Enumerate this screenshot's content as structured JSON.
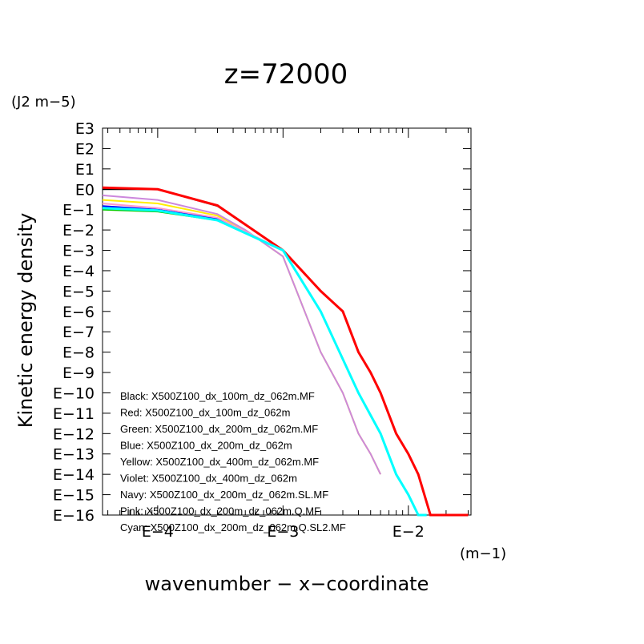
{
  "chart_data": {
    "type": "line",
    "title": "z=72000",
    "xlabel": "wavenumber − x−coordinate",
    "ylabel": "Kinetic energy density",
    "x_unit": "(m−1)",
    "y_unit": "(J2 m−5)",
    "x_scale": "log",
    "y_scale": "log",
    "xlim": [
      3.63e-05,
      0.0316
    ],
    "ylim": [
      1e-16,
      1000
    ],
    "x_tick_labels": [
      "E−4",
      "E−3",
      "E−2"
    ],
    "y_tick_labels": [
      "E3",
      "E2",
      "E1",
      "E0",
      "E−1",
      "E−2",
      "E−3",
      "E−4",
      "E−5",
      "E−6",
      "E−7",
      "E−8",
      "E−9",
      "E−10",
      "E−11",
      "E−12",
      "E−13",
      "E−14",
      "E−15",
      "E−16"
    ],
    "legend_position": "bottom-left",
    "series": [
      {
        "name": "Black: X500Z100_dx_100m_dz_062m.MF",
        "color": "#000000",
        "x": [
          3.63e-05,
          0.0001,
          0.0003,
          0.001,
          0.002,
          0.003,
          0.004,
          0.005,
          0.006,
          0.008,
          0.01,
          0.012,
          0.015,
          0.02,
          0.025,
          0.03
        ],
        "y": [
          1,
          1,
          0.15,
          0.001,
          1e-05,
          1e-06,
          1e-08,
          1e-09,
          1e-10,
          1e-12,
          1e-13,
          1e-14,
          1e-16,
          1e-16,
          1e-16,
          1e-16
        ]
      },
      {
        "name": "Red: X500Z100_dx_100m_dz_062m",
        "color": "#ff0000",
        "x": [
          3.63e-05,
          0.0001,
          0.0003,
          0.001,
          0.002,
          0.003,
          0.004,
          0.005,
          0.006,
          0.008,
          0.01,
          0.012,
          0.015,
          0.02,
          0.025,
          0.03
        ],
        "y": [
          1.2,
          1,
          0.16,
          0.001,
          1e-05,
          1e-06,
          1e-08,
          1e-09,
          1e-10,
          1e-12,
          1e-13,
          1e-14,
          1e-16,
          1e-16,
          1e-16,
          1e-16
        ]
      },
      {
        "name": "Green: X500Z100_dx_200m_dz_062m.MF",
        "color": "#00cc00",
        "x": [
          3.63e-05,
          0.0001,
          0.0003,
          0.001,
          0.002,
          0.004,
          0.006,
          0.008,
          0.01,
          0.012,
          0.014
        ],
        "y": [
          0.1,
          0.08,
          0.03,
          0.001,
          1e-06,
          1e-10,
          1e-12,
          1e-14,
          1e-15,
          1e-16,
          1e-16
        ]
      },
      {
        "name": "Blue: X500Z100_dx_200m_dz_062m",
        "color": "#0000ff",
        "x": [
          3.63e-05,
          0.0001,
          0.0003,
          0.001,
          0.002,
          0.004,
          0.006,
          0.008,
          0.01,
          0.012,
          0.014
        ],
        "y": [
          0.15,
          0.1,
          0.035,
          0.001,
          1e-06,
          1e-10,
          1e-12,
          1e-14,
          1e-15,
          1e-16,
          1e-16
        ]
      },
      {
        "name": "Yellow: X500Z100_dx_400m_dz_062m.MF",
        "color": "#ffee00",
        "x": [
          3.63e-05,
          0.0001,
          0.0003,
          0.0005,
          0.001,
          0.002,
          0.003,
          0.004,
          0.005,
          0.006
        ],
        "y": [
          0.3,
          0.2,
          0.05,
          0.01,
          0.0005,
          1e-08,
          1e-10,
          1e-12,
          1e-13,
          1e-14
        ]
      },
      {
        "name": "Violet: X500Z100_dx_400m_dz_062m",
        "color": "#cc88dd",
        "x": [
          3.63e-05,
          0.0001,
          0.0003,
          0.0005,
          0.001,
          0.002,
          0.003,
          0.004,
          0.005,
          0.006
        ],
        "y": [
          0.5,
          0.3,
          0.06,
          0.01,
          0.0005,
          1e-08,
          1e-10,
          1e-12,
          1e-13,
          1e-14
        ]
      },
      {
        "name": "Navy: X500Z100_dx_200m_dz_062m.SL.MF",
        "color": "#000080",
        "x": [
          3.63e-05,
          0.0001,
          0.0003,
          0.001,
          0.002,
          0.004,
          0.006,
          0.008,
          0.01,
          0.012,
          0.014
        ],
        "y": [
          0.12,
          0.09,
          0.03,
          0.001,
          1e-06,
          1e-10,
          1e-12,
          1e-14,
          1e-15,
          1e-16,
          1e-16
        ]
      },
      {
        "name": "Pink: X500Z100_dx_200m_dz_062m.Q.MF",
        "color": "#ff99cc",
        "x": [
          3.63e-05,
          0.0001,
          0.0003,
          0.001,
          0.002,
          0.004,
          0.006,
          0.008,
          0.01,
          0.012,
          0.014
        ],
        "y": [
          0.2,
          0.12,
          0.04,
          0.001,
          1e-06,
          1e-10,
          1e-12,
          1e-14,
          1e-15,
          1e-16,
          1e-16
        ]
      },
      {
        "name": "Cyan: X500Z100_dx_200m_dz_062m.Q.SL2.MF",
        "color": "#00ffff",
        "x": [
          3.63e-05,
          0.0001,
          0.0003,
          0.001,
          0.002,
          0.004,
          0.006,
          0.008,
          0.01,
          0.012,
          0.014
        ],
        "y": [
          0.12,
          0.09,
          0.03,
          0.001,
          1e-06,
          1e-10,
          1e-12,
          1e-14,
          1e-15,
          1e-16,
          1e-16
        ]
      }
    ]
  }
}
